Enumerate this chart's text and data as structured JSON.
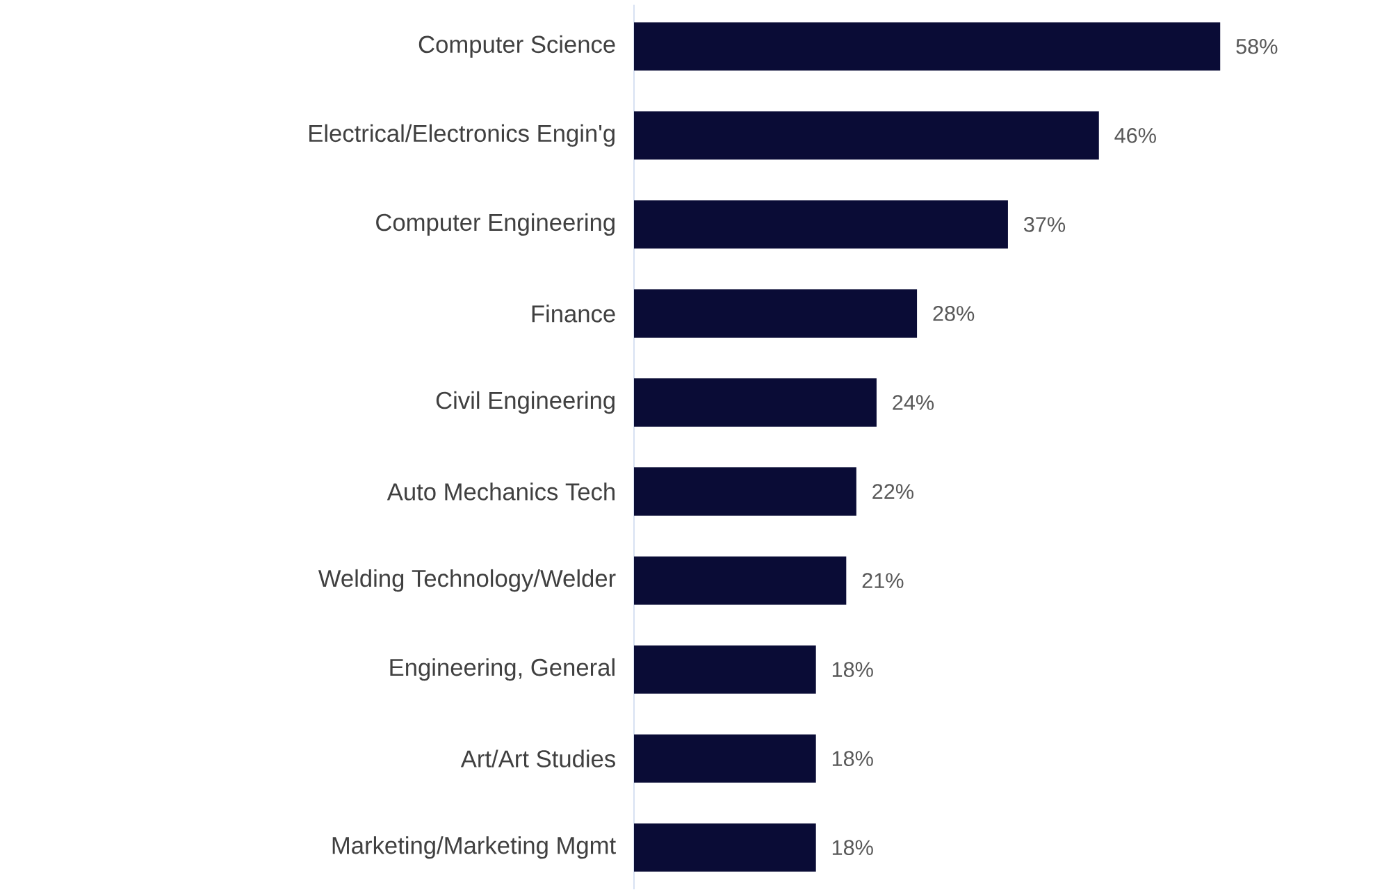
{
  "chart_data": {
    "type": "bar",
    "orientation": "horizontal",
    "categories": [
      "Computer Science",
      "Electrical/Electronics Engin'g",
      "Computer Engineering",
      "Finance",
      "Civil Engineering",
      "Auto Mechanics Tech",
      "Welding Technology/Welder",
      "Engineering, General",
      "Art/Art Studies",
      "Marketing/Marketing Mgmt"
    ],
    "values": [
      58,
      46,
      37,
      28,
      24,
      22,
      21,
      18,
      18,
      18
    ],
    "value_labels": [
      "58%",
      "46%",
      "37%",
      "28%",
      "24%",
      "22%",
      "21%",
      "18%",
      "18%",
      "18%"
    ],
    "color": "#0a0c36"
  }
}
